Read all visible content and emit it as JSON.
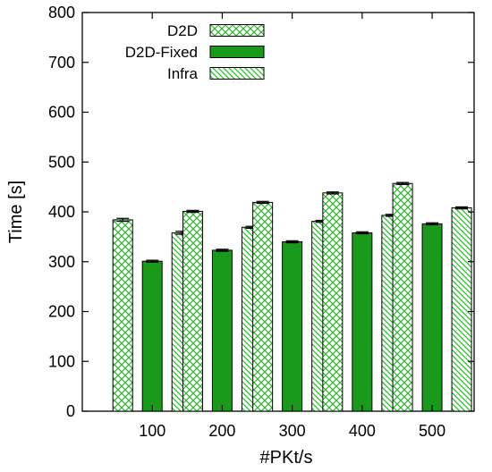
{
  "chart_data": {
    "type": "bar",
    "title": "",
    "xlabel": "#PKt/s",
    "ylabel": "Time [s]",
    "categories": [
      "100",
      "200",
      "300",
      "400",
      "500"
    ],
    "ylim": [
      0,
      800
    ],
    "yticks": [
      0,
      100,
      200,
      300,
      400,
      500,
      600,
      700,
      800
    ],
    "grid": false,
    "legend_position": "top-left",
    "error_bars": true,
    "series": [
      {
        "name": "D2D",
        "values": [
          384,
          401,
          419,
          438,
          457
        ],
        "errors": [
          3,
          2,
          2,
          2,
          2
        ],
        "pattern": "crosshatch",
        "color": "#5fd35f"
      },
      {
        "name": "D2D-Fixed",
        "values": [
          301,
          323,
          340,
          358,
          376
        ],
        "errors": [
          2,
          2,
          2,
          2,
          2
        ],
        "pattern": "solid",
        "color": "#1a9a1a"
      },
      {
        "name": "Infra",
        "values": [
          358,
          369,
          381,
          393,
          408
        ],
        "errors": [
          3,
          2,
          2,
          2,
          2
        ],
        "pattern": "diagonal",
        "color": "#5fd35f"
      }
    ]
  }
}
